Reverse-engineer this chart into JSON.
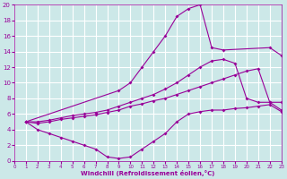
{
  "background_color": "#cce8e8",
  "grid_color": "#ffffff",
  "line_color": "#990099",
  "xlabel": "Windchill (Refroidissement éolien,°C)",
  "xlim": [
    0,
    23
  ],
  "ylim": [
    0,
    20
  ],
  "xticks": [
    0,
    1,
    2,
    3,
    4,
    5,
    6,
    7,
    8,
    9,
    10,
    11,
    12,
    13,
    14,
    15,
    16,
    17,
    18,
    19,
    20,
    21,
    22,
    23
  ],
  "yticks": [
    0,
    2,
    4,
    6,
    8,
    10,
    12,
    14,
    16,
    18,
    20
  ],
  "lines": [
    {
      "x": [
        1,
        2,
        3,
        4,
        5,
        6,
        7,
        8,
        9,
        10,
        11,
        12,
        13,
        14,
        15,
        16,
        17,
        18,
        19,
        20,
        21,
        22,
        23
      ],
      "y": [
        5.0,
        4.0,
        3.5,
        3.0,
        2.5,
        2.0,
        1.5,
        0.5,
        0.3,
        0.5,
        1.5,
        2.5,
        3.5,
        5.0,
        6.0,
        6.3,
        6.5,
        6.5,
        6.7,
        6.8,
        7.0,
        7.2,
        6.3
      ]
    },
    {
      "x": [
        1,
        2,
        3,
        4,
        5,
        6,
        7,
        8,
        9,
        10,
        11,
        12,
        13,
        14,
        15,
        16,
        17,
        18,
        19,
        20,
        21,
        22,
        23
      ],
      "y": [
        5.0,
        4.8,
        5.0,
        5.3,
        5.5,
        5.7,
        5.9,
        6.2,
        6.5,
        7.0,
        7.3,
        7.7,
        8.0,
        8.5,
        9.0,
        9.5,
        10.0,
        10.5,
        11.0,
        11.5,
        11.8,
        7.5,
        6.5
      ]
    },
    {
      "x": [
        1,
        2,
        3,
        4,
        5,
        6,
        7,
        8,
        9,
        10,
        11,
        12,
        13,
        14,
        15,
        16,
        17,
        18,
        19,
        20,
        21,
        22,
        23
      ],
      "y": [
        5.0,
        5.0,
        5.2,
        5.5,
        5.8,
        6.0,
        6.2,
        6.5,
        7.0,
        7.5,
        8.0,
        8.5,
        9.2,
        10.0,
        11.0,
        12.0,
        12.8,
        13.0,
        12.5,
        8.0,
        7.5,
        7.5,
        7.5
      ]
    },
    {
      "x": [
        1,
        9,
        10,
        11,
        12,
        13,
        14,
        15,
        16,
        17,
        18,
        22,
        23
      ],
      "y": [
        5.0,
        9.0,
        10.0,
        12.0,
        14.0,
        16.0,
        18.5,
        19.5,
        20.0,
        14.5,
        14.2,
        14.5,
        13.5
      ]
    }
  ]
}
